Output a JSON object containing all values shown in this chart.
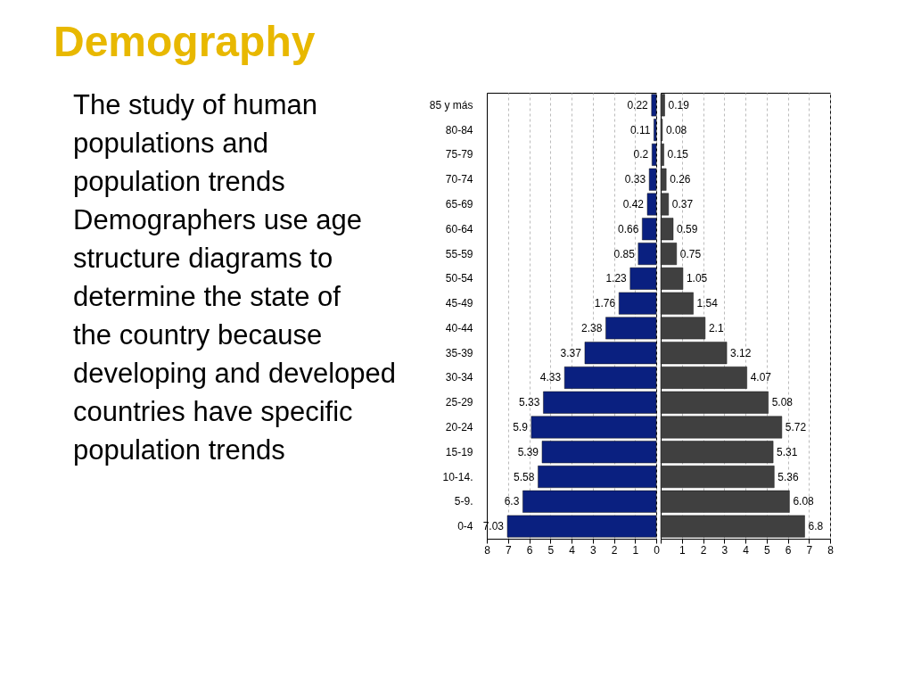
{
  "chart_data": [
    {
      "type": "bar",
      "orientation": "horizontal",
      "title": "Demography",
      "annotations": [
        "The study of human populations and population trends",
        "Demographers use age structure diagrams to determine the state of the country because developing and developed countries have specific population trends"
      ],
      "categories": [
        "85 y más",
        "80-84",
        "75-79",
        "70-74",
        "65-69",
        "60-64",
        "55-59",
        "50-54",
        "45-49",
        "40-44",
        "35-39",
        "30-34",
        "25-29",
        "20-24",
        "15-19",
        "10-14.",
        "5-9.",
        "0-4"
      ],
      "series": [
        {
          "color": "#0a2080",
          "values": [
            0.22,
            0.11,
            0.2,
            0.33,
            0.42,
            0.66,
            0.85,
            1.23,
            1.76,
            2.38,
            3.37,
            4.33,
            5.33,
            5.9,
            5.39,
            5.58,
            6.3,
            7.03
          ]
        }
      ],
      "data_labels": true,
      "xlim": [
        8,
        0
      ],
      "xticks": [
        8,
        7,
        6,
        5,
        4,
        3,
        2,
        1,
        0
      ],
      "grid": "x"
    },
    {
      "type": "bar",
      "orientation": "horizontal",
      "series": [
        {
          "color": "#404040",
          "values": [
            0.19,
            0.08,
            0.15,
            0.26,
            0.37,
            0.59,
            0.75,
            1.05,
            1.54,
            2.1,
            3.12,
            4.07,
            5.08,
            5.72,
            5.31,
            5.36,
            6.08,
            6.8
          ]
        }
      ],
      "data_labels": true,
      "xlim": [
        0,
        8
      ],
      "xticks": [
        {
          "value": 0,
          "label": null
        },
        1,
        2,
        3,
        4,
        5,
        6,
        7,
        8
      ],
      "grid": "x",
      "tick_labels": "x"
    }
  ]
}
